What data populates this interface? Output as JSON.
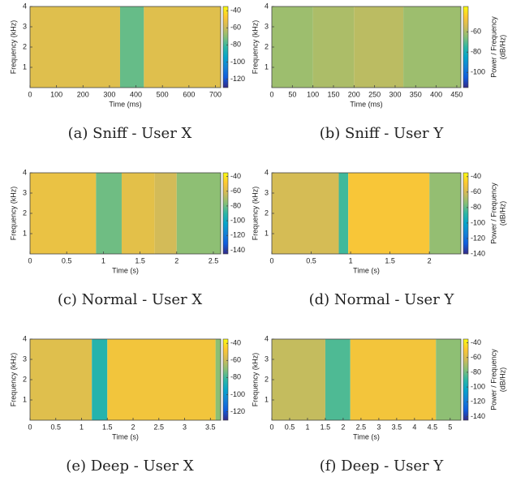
{
  "colormap": [
    "#352a87",
    "#0f5cdd",
    "#1481d6",
    "#06a4ca",
    "#2eb7a4",
    "#87bf77",
    "#d1bb59",
    "#fec832",
    "#f9fb0e"
  ],
  "chart_data": [
    {
      "type": "heatmap",
      "caption": "(a) Sniff - User X",
      "xlabel": "Time (ms)",
      "ylabel": "Frequency (kHz)",
      "xlim": [
        0,
        720
      ],
      "xticks": [
        0,
        100,
        200,
        300,
        400,
        500,
        600,
        700
      ],
      "ylim": [
        0,
        4
      ],
      "yticks": [
        1,
        2,
        3,
        4
      ],
      "clim": [
        -130,
        -35
      ],
      "cticks": [
        -40,
        -60,
        -80,
        -100,
        -120
      ],
      "xbins": [
        0,
        340,
        430,
        720
      ],
      "values": [
        -55,
        -75,
        -55
      ]
    },
    {
      "type": "heatmap",
      "caption": "(b) Sniff - User Y",
      "xlabel": "Time (ms)",
      "ylabel": "Frequency (kHz)",
      "xlim": [
        0,
        460
      ],
      "xticks": [
        0,
        50,
        100,
        150,
        200,
        250,
        300,
        350,
        400,
        450
      ],
      "ylim": [
        0,
        4
      ],
      "yticks": [
        1,
        2,
        3,
        4
      ],
      "clim": [
        -115,
        -35
      ],
      "cticks": [
        -60,
        -80,
        -100
      ],
      "colorbar_label": [
        "Power / Frequency",
        "(dB/Hz)"
      ],
      "xbins": [
        0,
        100,
        200,
        320,
        460
      ],
      "values": [
        -62,
        -60,
        -58,
        -62
      ]
    },
    {
      "type": "heatmap",
      "caption": "(c) Normal - User X",
      "xlabel": "Time (s)",
      "ylabel": "Frequency (kHz)",
      "xlim": [
        0,
        2.6
      ],
      "xticks": [
        0,
        0.5,
        1,
        1.5,
        2,
        2.5
      ],
      "ylim": [
        0,
        4
      ],
      "yticks": [
        1,
        2,
        3,
        4
      ],
      "clim": [
        -145,
        -35
      ],
      "cticks": [
        -40,
        -60,
        -80,
        -100,
        -120,
        -140
      ],
      "xbins": [
        0,
        0.9,
        1.25,
        1.7,
        2.0,
        2.6
      ],
      "values": [
        -55,
        -80,
        -57,
        -62,
        -75
      ]
    },
    {
      "type": "heatmap",
      "caption": "(d) Normal - User Y",
      "xlabel": "Time (s)",
      "ylabel": "Frequency (kHz)",
      "xlim": [
        0,
        2.4
      ],
      "xticks": [
        0,
        0.5,
        1,
        1.5,
        2
      ],
      "ylim": [
        0,
        4
      ],
      "yticks": [
        1,
        2,
        3,
        4
      ],
      "clim": [
        -140,
        -35
      ],
      "cticks": [
        -40,
        -60,
        -80,
        -100,
        -120,
        -140
      ],
      "colorbar_label": [
        "Power / Frequency",
        "(dB/Hz)"
      ],
      "xbins": [
        0,
        0.85,
        0.97,
        2.0,
        2.4
      ],
      "values": [
        -60,
        -85,
        -50,
        -72
      ]
    },
    {
      "type": "heatmap",
      "caption": "(e) Deep - User X",
      "xlabel": "Time (s)",
      "ylabel": "Frequency (kHz)",
      "xlim": [
        0,
        3.7
      ],
      "xticks": [
        0,
        0.5,
        1,
        1.5,
        2,
        2.5,
        3,
        3.5
      ],
      "ylim": [
        0,
        4
      ],
      "yticks": [
        1,
        2,
        3,
        4
      ],
      "clim": [
        -130,
        -35
      ],
      "cticks": [
        -40,
        -60,
        -80,
        -100,
        -120
      ],
      "xbins": [
        0,
        1.2,
        1.5,
        3.6,
        3.7
      ],
      "values": [
        -55,
        -85,
        -50,
        -70
      ]
    },
    {
      "type": "heatmap",
      "caption": "(f) Deep - User Y",
      "xlabel": "Time (s)",
      "ylabel": "Frequency (kHz)",
      "xlim": [
        0,
        5.3
      ],
      "xticks": [
        0,
        0.5,
        1,
        1.5,
        2,
        2.5,
        3,
        3.5,
        4,
        4.5,
        5
      ],
      "ylim": [
        0,
        4
      ],
      "yticks": [
        1,
        2,
        3,
        4
      ],
      "clim": [
        -145,
        -35
      ],
      "cticks": [
        -40,
        -60,
        -80,
        -100,
        -120,
        -140
      ],
      "colorbar_label": [
        "Power / Frequency",
        "(dB/Hz)"
      ],
      "xbins": [
        0,
        1.5,
        2.2,
        4.6,
        5.3
      ],
      "values": [
        -65,
        -85,
        -52,
        -75
      ]
    }
  ]
}
